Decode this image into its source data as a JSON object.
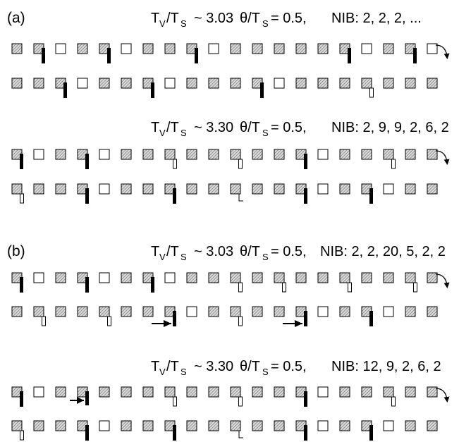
{
  "panels": [
    {
      "label": "(a)",
      "runs": [
        {
          "ratio_label": "T",
          "ratio_sub_v": "V",
          "ratio_slash": "/T",
          "ratio_sub_s": "S",
          "ratio_value": "~ 3.03",
          "theta_label": "θ/T",
          "theta_sub": "S",
          "theta_value": "= 0.5,",
          "nib": "NIB: 2, 2, 2, ...",
          "rows": [
            {
              "cells": [
                "f",
                "fB",
                "e",
                "f",
                "fB",
                "e",
                "f",
                "f",
                "fB",
                "e",
                "f",
                "f",
                "f",
                "f",
                "f",
                "fB",
                "e",
                "f",
                "fB",
                "e"
              ],
              "wrap_arrow": true
            },
            {
              "cells": [
                "f",
                "f",
                "fB",
                "e",
                "f",
                "f",
                "fB",
                "e",
                "f",
                "f",
                "f",
                "fB",
                "e",
                "f",
                "f",
                "f",
                "fo",
                "f",
                "f",
                "f"
              ],
              "wrap_arrow": false
            }
          ]
        },
        {
          "ratio_label": "T",
          "ratio_sub_v": "V",
          "ratio_slash": "/T",
          "ratio_sub_s": "S",
          "ratio_value": "~ 3.30",
          "theta_label": "θ/T",
          "theta_sub": "S",
          "theta_value": "= 0.5,",
          "nib": "NIB: 2, 9, 9, 2, 6, 2",
          "rows": [
            {
              "cells": [
                "fB",
                "e",
                "f",
                "fB",
                "e",
                "f",
                "f",
                "fo",
                "f",
                "f",
                "fo",
                "f",
                "f",
                "fB",
                "e",
                "f",
                "f",
                "fo",
                "f",
                "f"
              ],
              "wrap_arrow": true
            },
            {
              "cells": [
                "fo",
                "f",
                "f",
                "fB",
                "e",
                "f",
                "f",
                "fB",
                "f",
                "f",
                "fl",
                "f",
                "f",
                "fB",
                "e",
                "f",
                "fB",
                "e",
                "f",
                "f"
              ],
              "wrap_arrow": false
            }
          ]
        }
      ]
    },
    {
      "label": "(b)",
      "runs": [
        {
          "ratio_label": "T",
          "ratio_sub_v": "V",
          "ratio_slash": "/T",
          "ratio_sub_s": "S",
          "ratio_value": "~ 3.03",
          "theta_label": "θ/T",
          "theta_sub": "S",
          "theta_value": "= 0.5,",
          "nib": "NIB: 2, 2, 20, 5, 2, 2",
          "rows": [
            {
              "cells": [
                "fB",
                "e",
                "f",
                "fB",
                "e",
                "f",
                "fB",
                "e",
                "f",
                "f",
                "fo",
                "f",
                "fo",
                "f",
                "f",
                "fo",
                "f",
                "f",
                "fo",
                "f"
              ],
              "wrap_arrow": true
            },
            {
              "cells": [
                "f",
                "fo",
                "f",
                "f",
                "fo",
                "f",
                "f",
                "fBA",
                "e",
                "f",
                "fo",
                "f",
                "f",
                "fBA",
                "e",
                "f",
                "fB",
                "e",
                "f",
                "f"
              ],
              "wrap_arrow": false
            }
          ]
        },
        {
          "ratio_label": "T",
          "ratio_sub_v": "V",
          "ratio_slash": "/T",
          "ratio_sub_s": "S",
          "ratio_value": "~ 3.30",
          "theta_label": "θ/T",
          "theta_sub": "S",
          "theta_value": "= 0.5,",
          "nib": "NIB: 12, 9, 2, 6, 2",
          "rows": [
            {
              "cells": [
                "fB",
                "e",
                "f",
                "fA",
                "f",
                "f",
                "f",
                "fo",
                "f",
                "f",
                "fo",
                "f",
                "f",
                "fB",
                "e",
                "f",
                "f",
                "fo",
                "f",
                "f"
              ],
              "wrap_arrow": true
            },
            {
              "cells": [
                "fo",
                "f",
                "f",
                "fB",
                "e",
                "f",
                "f",
                "fB",
                "f",
                "f",
                "fl",
                "f",
                "f",
                "fB",
                "e",
                "f",
                "fB",
                "e",
                "f",
                "f"
              ],
              "wrap_arrow": false
            }
          ]
        }
      ]
    }
  ]
}
